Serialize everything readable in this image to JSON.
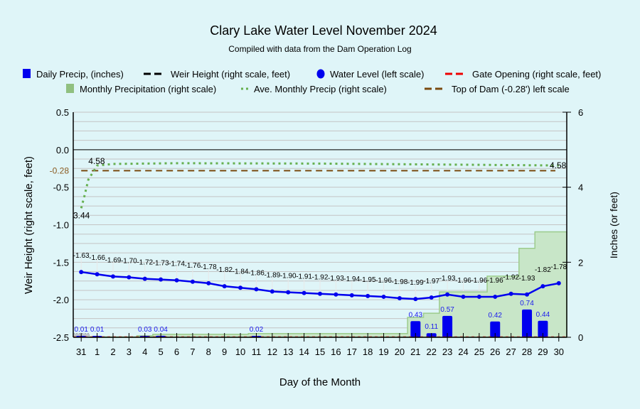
{
  "chart_data": {
    "type": "combo",
    "title": "Clary Lake Water Level November 2024",
    "subtitle": "Compiled with data from the Dam Operation Log",
    "xlabel": "Day of the Month",
    "ylabel_left": "Weir Height (right scale, feet)",
    "ylabel_right": "Inches (or feet)",
    "ylim_left": [
      -2.5,
      0.5
    ],
    "ylim_right": [
      0,
      6
    ],
    "left_ticks": [
      "0.5",
      "0.0",
      "-0.5",
      "-1.0",
      "-1.5",
      "-2.0",
      "-2.5"
    ],
    "left_tick_values": [
      0.5,
      0.0,
      -0.5,
      -1.0,
      -1.5,
      -2.0,
      -2.5
    ],
    "right_ticks": [
      "6",
      "4",
      "2",
      "0"
    ],
    "right_tick_values": [
      6,
      4,
      2,
      0
    ],
    "top_of_dam": {
      "value": -0.28,
      "label": "-0.28"
    },
    "grid": true,
    "legend_position": "top",
    "legend": [
      {
        "key": "daily",
        "label": "Daily Precip, (inches)",
        "color": "#0000ee"
      },
      {
        "key": "weir",
        "label": "Weir Height (right scale, feet)",
        "color": "#000000"
      },
      {
        "key": "level",
        "label": "Water Level (left scale)",
        "color": "#0000ee"
      },
      {
        "key": "gate",
        "label": "Gate Opening (right scale, feet)",
        "color": "#ee0000"
      },
      {
        "key": "monthly",
        "label": "Monthly Precipitation (right scale)",
        "color": "#90c080"
      },
      {
        "key": "avg",
        "label": "Ave. Monthly Precip (right scale)",
        "color": "#66b050"
      },
      {
        "key": "dam",
        "label": "Top of Dam (-0.28') left scale",
        "color": "#7a4a10"
      }
    ],
    "categories": [
      "31",
      "1",
      "2",
      "3",
      "4",
      "5",
      "6",
      "7",
      "8",
      "9",
      "10",
      "11",
      "12",
      "13",
      "14",
      "15",
      "16",
      "17",
      "18",
      "19",
      "20",
      "21",
      "22",
      "23",
      "24",
      "25",
      "26",
      "27",
      "28",
      "29",
      "30"
    ],
    "water_level": [
      -1.63,
      -1.66,
      -1.69,
      -1.7,
      -1.72,
      -1.73,
      -1.74,
      -1.76,
      -1.78,
      -1.82,
      -1.84,
      -1.86,
      -1.89,
      -1.9,
      -1.91,
      -1.92,
      -1.93,
      -1.94,
      -1.95,
      -1.96,
      -1.98,
      -1.99,
      -1.97,
      -1.93,
      -1.96,
      -1.96,
      -1.96,
      -1.92,
      -1.93,
      -1.82,
      -1.78
    ],
    "daily_precip": [
      0.01,
      0.01,
      0,
      0,
      0.03,
      0.04,
      0,
      0,
      0,
      0,
      0,
      0.02,
      0,
      0,
      0,
      0,
      0,
      0,
      0,
      0,
      0,
      0.43,
      0.11,
      0.57,
      0,
      0,
      0.42,
      0,
      0.74,
      0.44,
      0
    ],
    "monthly_precip": [
      0.1,
      0.01,
      0.01,
      0.01,
      0.04,
      0.08,
      0.08,
      0.08,
      0.08,
      0.08,
      0.08,
      0.1,
      0.1,
      0.1,
      0.1,
      0.1,
      0.1,
      0.1,
      0.1,
      0.1,
      0.1,
      0.53,
      0.64,
      1.21,
      1.21,
      1.21,
      1.63,
      1.63,
      2.37,
      2.81,
      2.81
    ],
    "ave_monthly_precip": {
      "start": 3.44,
      "start_label": "3.44",
      "end": 4.58,
      "end_label": "4.58",
      "plateau_label": "4.58"
    },
    "weir_height": 0,
    "gate_opening": 0
  }
}
